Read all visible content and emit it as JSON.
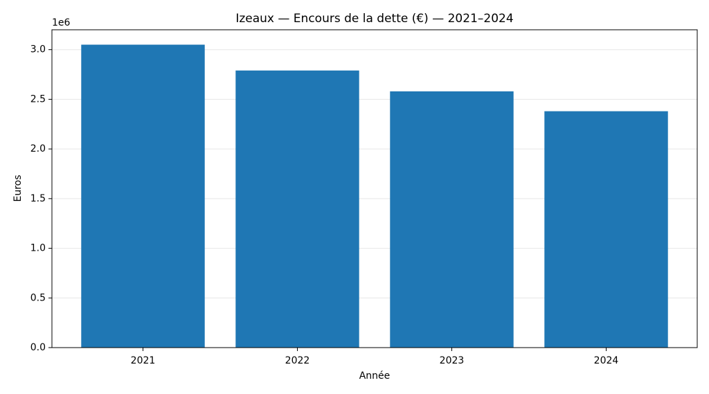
{
  "chart_data": {
    "type": "bar",
    "title": "Izeaux — Encours de la dette (€) — 2021–2024",
    "x_label": "Année",
    "y_label": "Euros",
    "y_offset_label": "1e6",
    "categories": [
      "2021",
      "2022",
      "2023",
      "2024"
    ],
    "values": [
      3050000,
      2790000,
      2580000,
      2380000
    ],
    "color": "#1f77b4",
    "ylim": [
      0,
      3200000
    ],
    "yticks": [
      {
        "value": 0,
        "label": "0.0"
      },
      {
        "value": 500000,
        "label": "0.5"
      },
      {
        "value": 1000000,
        "label": "1.0"
      },
      {
        "value": 1500000,
        "label": "1.5"
      },
      {
        "value": 2000000,
        "label": "2.0"
      },
      {
        "value": 2500000,
        "label": "2.5"
      },
      {
        "value": 3000000,
        "label": "3.0"
      }
    ],
    "grid": true
  }
}
